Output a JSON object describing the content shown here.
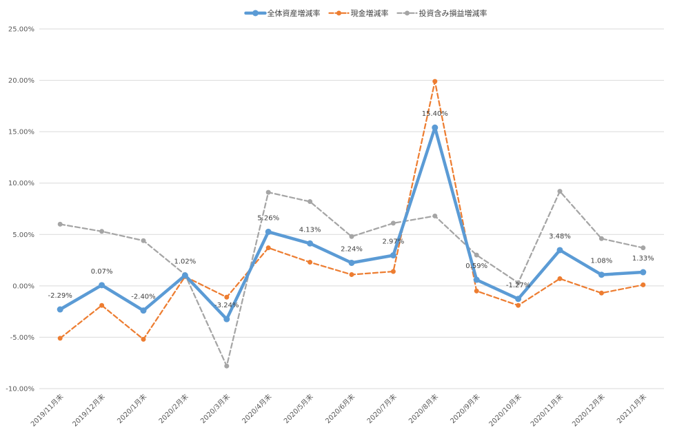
{
  "chart_data": {
    "type": "line",
    "categories": [
      "2019/11月末",
      "2019/12月末",
      "2020/1月末",
      "2020/2月末",
      "2020/3月末",
      "2020/4月末",
      "2020/5月末",
      "2020/6月末",
      "2020/7月末",
      "2020/8月末",
      "2020/9月末",
      "2020/10月末",
      "2020/11月末",
      "2020/12月末",
      "2021/1月末"
    ],
    "series": [
      {
        "name": "全体資産増減率",
        "color": "#5b9bd5",
        "style": "solid",
        "values": [
          -2.29,
          0.07,
          -2.4,
          1.02,
          -3.24,
          5.26,
          4.13,
          2.24,
          2.97,
          15.4,
          0.59,
          -1.27,
          3.48,
          1.08,
          1.33
        ],
        "labels": [
          "-2.29%",
          "0.07%",
          "-2.40%",
          "1.02%",
          "-3.24%",
          "5.26%",
          "4.13%",
          "2.24%",
          "2.97%",
          "15.40%",
          "0.59%",
          "-1.27%",
          "3.48%",
          "1.08%",
          "1.33%"
        ]
      },
      {
        "name": "現金増減率",
        "color": "#ed7d31",
        "style": "dashed",
        "values": [
          -5.1,
          -1.9,
          -5.2,
          0.9,
          -1.1,
          3.7,
          2.3,
          1.1,
          1.4,
          19.9,
          -0.5,
          -1.9,
          0.7,
          -0.7,
          0.1
        ]
      },
      {
        "name": "投資含み損益増減率",
        "color": "#a5a5a5",
        "style": "dashed",
        "values": [
          6.0,
          5.3,
          4.4,
          1.1,
          -7.8,
          9.1,
          8.2,
          4.8,
          6.1,
          6.8,
          3.0,
          0.3,
          9.2,
          4.6,
          3.7
        ]
      }
    ],
    "y_ticks": [
      "25.00%",
      "20.00%",
      "15.00%",
      "10.00%",
      "5.00%",
      "0.00%",
      "-5.00%",
      "-10.00%"
    ],
    "ylim": [
      -10,
      25
    ],
    "grid": true,
    "legend": "top-center"
  }
}
